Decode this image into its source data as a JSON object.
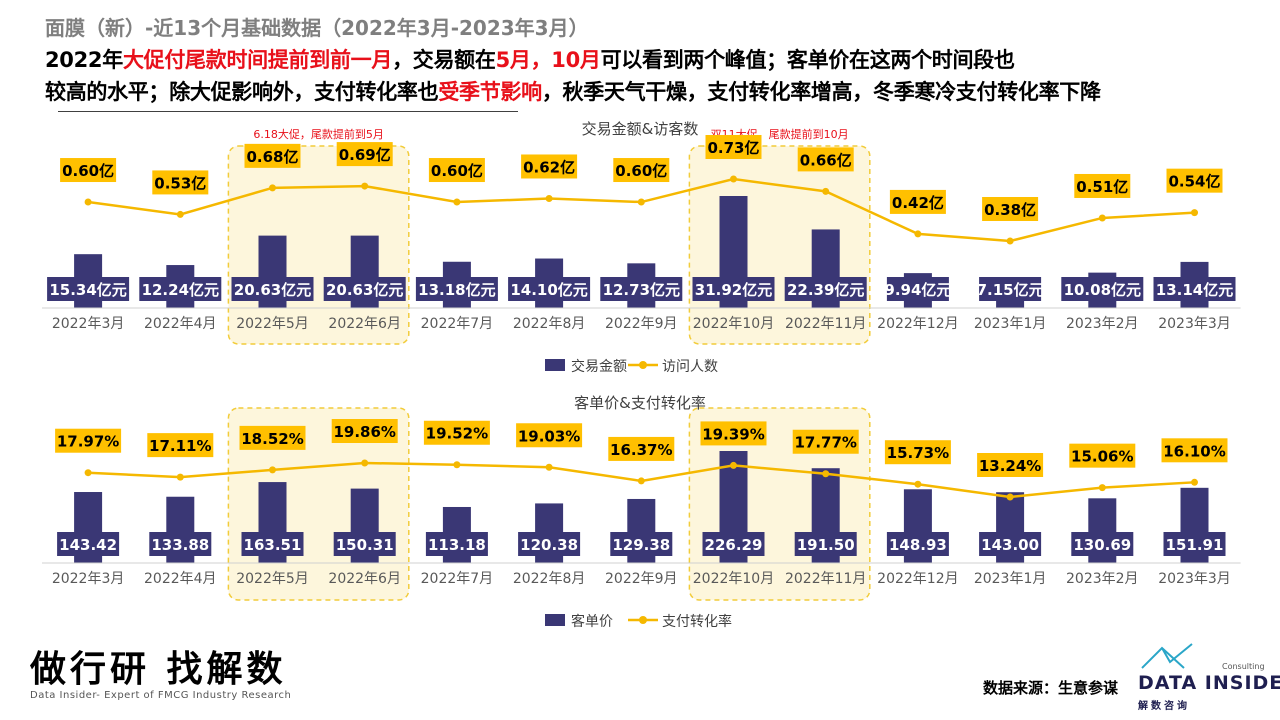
{
  "page": {
    "title": "面膜（新）-近13个月基础数据（2022年3月-2023年3月）",
    "headline_line1": [
      {
        "text": "2022年",
        "red": false
      },
      {
        "text": "大促付尾款时间提前到前一月",
        "red": true
      },
      {
        "text": "，交易额在",
        "red": false
      },
      {
        "text": "5月，10月",
        "red": true
      },
      {
        "text": "可以看到两个峰值；客单价在这两个时间段也",
        "red": false
      }
    ],
    "headline_line2": [
      {
        "text": "较高的水平；除大促影响外，支付转化率也",
        "red": false
      },
      {
        "text": "受季节影响",
        "red": true
      },
      {
        "text": "，秋季天气干燥，支付转化率增高，冬季寒冷支付转化率下降",
        "red": false
      }
    ],
    "footer": {
      "slogan": "做行研 找解数",
      "sub": "Data Insider- Expert of FMCG Industry Research",
      "source": "数据来源：生意参谋",
      "logo_text": "DATA INSIDER",
      "logo_consult": "Consulting",
      "logo_cn": "解数咨询"
    },
    "colors": {
      "bar": "#3a3775",
      "line": "#f5b800",
      "label_bg": "#ffc000",
      "red": "#e8101a",
      "highlight_fill": "#fdf6dc",
      "highlight_border": "#f2cc3a"
    }
  },
  "chart_data": [
    {
      "type": "bar+line",
      "title": "交易金额&访客数",
      "categories": [
        "2022年3月",
        "2022年4月",
        "2022年5月",
        "2022年6月",
        "2022年7月",
        "2022年8月",
        "2022年9月",
        "2022年10月",
        "2022年11月",
        "2022年12月",
        "2023年1月",
        "2023年2月",
        "2023年3月"
      ],
      "series": [
        {
          "name": "交易金额",
          "type": "bar",
          "values": [
            15.34,
            12.24,
            20.63,
            20.63,
            13.18,
            14.1,
            12.73,
            31.92,
            22.39,
            9.94,
            7.15,
            10.08,
            13.14
          ],
          "labels": [
            "15.34亿元",
            "12.24亿元",
            "20.63亿元",
            "20.63亿元",
            "13.18亿元",
            "14.10亿元",
            "12.73亿元",
            "31.92亿元",
            "22.39亿元",
            "9.94亿元",
            "7.15亿元",
            "10.08亿元",
            "13.14亿元"
          ]
        },
        {
          "name": "访问人数",
          "type": "line",
          "values": [
            0.6,
            0.53,
            0.68,
            0.69,
            0.6,
            0.62,
            0.6,
            0.73,
            0.66,
            0.42,
            0.38,
            0.51,
            0.54
          ],
          "labels": [
            "0.60亿",
            "0.53亿",
            "0.68亿",
            "0.69亿",
            "0.60亿",
            "0.62亿",
            "0.60亿",
            "0.73亿",
            "0.66亿",
            "0.42亿",
            "0.38亿",
            "0.51亿",
            "0.54亿"
          ]
        }
      ],
      "highlights": [
        {
          "from": 2,
          "to": 3,
          "note": "6.18大促，尾款提前到5月"
        },
        {
          "from": 7,
          "to": 8,
          "note": "双11大促，尾款提前到10月"
        }
      ],
      "legend": "bottom"
    },
    {
      "type": "bar+line",
      "title": "客单价&支付转化率",
      "categories": [
        "2022年3月",
        "2022年4月",
        "2022年5月",
        "2022年6月",
        "2022年7月",
        "2022年8月",
        "2022年9月",
        "2022年10月",
        "2022年11月",
        "2022年12月",
        "2023年1月",
        "2023年2月",
        "2023年3月"
      ],
      "series": [
        {
          "name": "客单价",
          "type": "bar",
          "values": [
            143.42,
            133.88,
            163.51,
            150.31,
            113.18,
            120.38,
            129.38,
            226.29,
            191.5,
            148.93,
            143.0,
            130.69,
            151.91
          ],
          "labels": [
            "143.42",
            "133.88",
            "163.51",
            "150.31",
            "113.18",
            "120.38",
            "129.38",
            "226.29",
            "191.50",
            "148.93",
            "143.00",
            "130.69",
            "151.91"
          ]
        },
        {
          "name": "支付转化率",
          "type": "line",
          "values": [
            17.97,
            17.11,
            18.52,
            19.86,
            19.52,
            19.03,
            16.37,
            19.39,
            17.77,
            15.73,
            13.24,
            15.06,
            16.1
          ],
          "labels": [
            "17.97%",
            "17.11%",
            "18.52%",
            "19.86%",
            "19.52%",
            "19.03%",
            "16.37%",
            "19.39%",
            "17.77%",
            "15.73%",
            "13.24%",
            "15.06%",
            "16.10%"
          ]
        }
      ],
      "highlights": [
        {
          "from": 2,
          "to": 3,
          "note": ""
        },
        {
          "from": 7,
          "to": 8,
          "note": ""
        }
      ],
      "legend": "bottom"
    }
  ]
}
